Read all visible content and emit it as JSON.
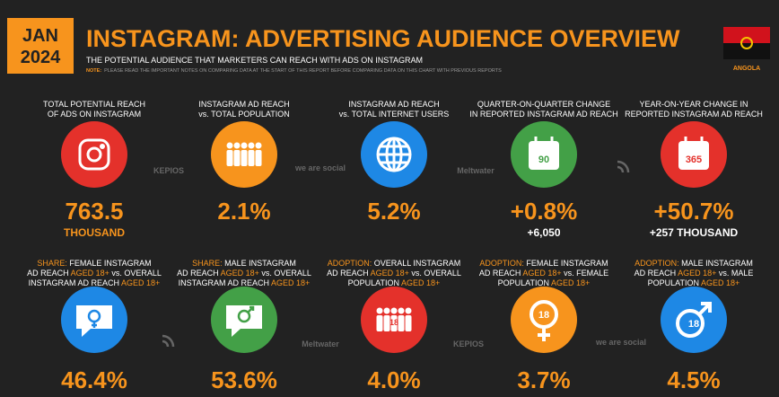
{
  "header": {
    "month": "JAN",
    "year": "2024",
    "title": "INSTAGRAM: ADVERTISING AUDIENCE OVERVIEW",
    "subtitle": "THE POTENTIAL AUDIENCE THAT MARKETERS CAN REACH WITH ADS ON INSTAGRAM",
    "note_label": "NOTE:",
    "note": "PLEASE READ THE IMPORTANT NOTES ON COMPARING DATA AT THE START OF THIS REPORT BEFORE COMPARING DATA ON THIS CHART WITH PREVIOUS REPORTS",
    "country": "ANGOLA"
  },
  "cards": [
    {
      "label": [
        [
          {
            "text": "TOTAL POTENTIAL REACH"
          }
        ],
        [
          {
            "text": "OF ADS ON INSTAGRAM"
          }
        ]
      ],
      "value": "763.5",
      "sub": {
        "text": "THOUSAND",
        "color": "#f7941d"
      },
      "icon": "instagram",
      "icon_color": "#e4312b"
    },
    {
      "label": [
        [
          {
            "text": "INSTAGRAM AD REACH"
          }
        ],
        [
          {
            "text": "vs. TOTAL POPULATION"
          }
        ]
      ],
      "value": "2.1%",
      "icon": "people",
      "icon_color": "#f7941d"
    },
    {
      "label": [
        [
          {
            "text": "INSTAGRAM AD REACH"
          }
        ],
        [
          {
            "text": "vs. TOTAL INTERNET USERS"
          }
        ]
      ],
      "value": "5.2%",
      "icon": "globe",
      "icon_color": "#1e88e5"
    },
    {
      "label": [
        [
          {
            "text": "QUARTER-ON-QUARTER CHANGE"
          }
        ],
        [
          {
            "text": "IN REPORTED INSTAGRAM AD REACH"
          }
        ]
      ],
      "value": "+0.8%",
      "sub": {
        "text": "+6,050",
        "color": "#ffffff"
      },
      "icon": "calendar",
      "icon_text": "90",
      "icon_color": "#43a047"
    },
    {
      "label": [
        [
          {
            "text": "YEAR-ON-YEAR CHANGE IN"
          }
        ],
        [
          {
            "text": "REPORTED INSTAGRAM AD REACH"
          }
        ]
      ],
      "value": "+50.7%",
      "sub": {
        "text": "+257 THOUSAND",
        "color": "#ffffff"
      },
      "icon": "calendar",
      "icon_text": "365",
      "icon_color": "#e4312b"
    },
    {
      "label": [
        [
          {
            "text": "SHARE:",
            "color": "#f7941d"
          },
          {
            "text": " FEMALE INSTAGRAM"
          }
        ],
        [
          {
            "text": "AD REACH "
          },
          {
            "text": "AGED 18+",
            "color": "#f7941d"
          },
          {
            "text": " vs. OVERALL"
          }
        ],
        [
          {
            "text": "INSTAGRAM AD REACH "
          },
          {
            "text": "AGED 18+",
            "color": "#f7941d"
          }
        ]
      ],
      "value": "46.4%",
      "icon": "chat-female",
      "icon_color": "#1e88e5"
    },
    {
      "label": [
        [
          {
            "text": "SHARE:",
            "color": "#f7941d"
          },
          {
            "text": " MALE INSTAGRAM"
          }
        ],
        [
          {
            "text": "AD REACH "
          },
          {
            "text": "AGED 18+",
            "color": "#f7941d"
          },
          {
            "text": " vs. OVERALL"
          }
        ],
        [
          {
            "text": "INSTAGRAM AD REACH "
          },
          {
            "text": "AGED 18+",
            "color": "#f7941d"
          }
        ]
      ],
      "value": "53.6%",
      "icon": "chat-male",
      "icon_color": "#43a047"
    },
    {
      "label": [
        [
          {
            "text": "ADOPTION:",
            "color": "#f7941d"
          },
          {
            "text": " OVERALL INSTAGRAM"
          }
        ],
        [
          {
            "text": "AD REACH "
          },
          {
            "text": "AGED 18+",
            "color": "#f7941d"
          },
          {
            "text": " vs. OVERALL"
          }
        ],
        [
          {
            "text": "POPULATION "
          },
          {
            "text": "AGED 18+",
            "color": "#f7941d"
          }
        ]
      ],
      "value": "4.0%",
      "icon": "people",
      "icon_text": "18",
      "icon_color": "#e4312b"
    },
    {
      "label": [
        [
          {
            "text": "ADOPTION:",
            "color": "#f7941d"
          },
          {
            "text": " FEMALE INSTAGRAM"
          }
        ],
        [
          {
            "text": "AD REACH "
          },
          {
            "text": "AGED 18+",
            "color": "#f7941d"
          },
          {
            "text": " vs. FEMALE"
          }
        ],
        [
          {
            "text": "POPULATION "
          },
          {
            "text": "AGED 18+",
            "color": "#f7941d"
          }
        ]
      ],
      "value": "3.7%",
      "icon": "female",
      "icon_text": "18",
      "icon_color": "#f7941d"
    },
    {
      "label": [
        [
          {
            "text": "ADOPTION:",
            "color": "#f7941d"
          },
          {
            "text": " MALE INSTAGRAM"
          }
        ],
        [
          {
            "text": "AD REACH "
          },
          {
            "text": "AGED 18+",
            "color": "#f7941d"
          },
          {
            "text": " vs. MALE"
          }
        ],
        [
          {
            "text": "POPULATION "
          },
          {
            "text": "AGED 18+",
            "color": "#f7941d"
          }
        ]
      ],
      "value": "4.5%",
      "icon": "male",
      "icon_text": "18",
      "icon_color": "#1e88e5"
    }
  ],
  "logos": {
    "row1": [
      "KEPIOS",
      "we are social",
      "Meltwater"
    ],
    "row2": [
      "Meltwater",
      "KEPIOS",
      "we are social"
    ]
  }
}
